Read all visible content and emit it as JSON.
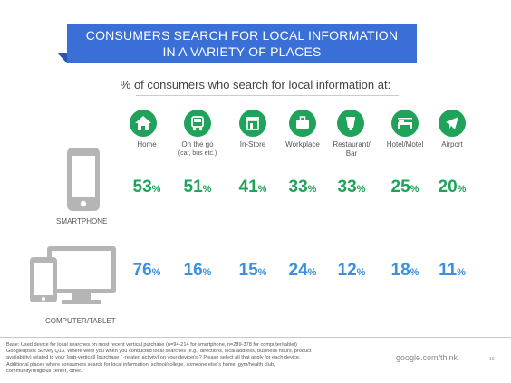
{
  "header": {
    "title_line1": "CONSUMERS SEARCH FOR LOCAL INFORMATION",
    "title_line2": "IN A VARIETY OF PLACES",
    "subtitle": "% of consumers who search for local information at:"
  },
  "categories": [
    {
      "label": "Home",
      "sublabel": "",
      "icon": "home-icon"
    },
    {
      "label": "On the go",
      "sublabel": "(car, bus etc.)",
      "icon": "car-icon"
    },
    {
      "label": "In-Store",
      "sublabel": "",
      "icon": "store-icon"
    },
    {
      "label": "Workplace",
      "sublabel": "",
      "icon": "briefcase-icon"
    },
    {
      "label": "Restaurant/",
      "sublabel": "Bar",
      "icon": "restaurant-icon"
    },
    {
      "label": "Hotel/Motel",
      "sublabel": "",
      "icon": "bed-icon"
    },
    {
      "label": "Airport",
      "sublabel": "",
      "icon": "airplane-icon"
    }
  ],
  "chart_data": {
    "type": "table",
    "categories": [
      "Home",
      "On the go (car, bus etc.)",
      "In-Store",
      "Workplace",
      "Restaurant/ Bar",
      "Hotel/Motel",
      "Airport"
    ],
    "series": [
      {
        "name": "SMARTPHONE",
        "values": [
          53,
          51,
          41,
          33,
          33,
          25,
          20
        ],
        "color": "#1fa35b"
      },
      {
        "name": "COMPUTER/TABLET",
        "values": [
          76,
          16,
          15,
          24,
          12,
          18,
          11
        ],
        "color": "#3b8fe0"
      }
    ],
    "unit": "%"
  },
  "colors": {
    "banner": "#3b6fd8",
    "icon_bg": "#1fa35b",
    "smartphone": "#1fa35b",
    "computer": "#3b8fe0",
    "device_gray": "#b5b5b5"
  },
  "footer": {
    "note_line1": "Base: Used device for local searches on most recent vertical purchase (n=94-214 for smartphone, n=289-378 for computer/tablet)",
    "note_line2": "Google/Ipsos Survey Q13. Where were you when you conducted local searches (e.g., directions, local address, business hours, product",
    "note_line3": "availability) related to your [sub-vertical] [purchase / -related activity] on your device(s)? Please select all that apply for each device.",
    "note_line4": "Additional places where consumers search for local information: school/college, someone else's home, gym/health club,",
    "note_line5": "community/religious center, other.",
    "brand": "google.com/think",
    "page": "10"
  }
}
